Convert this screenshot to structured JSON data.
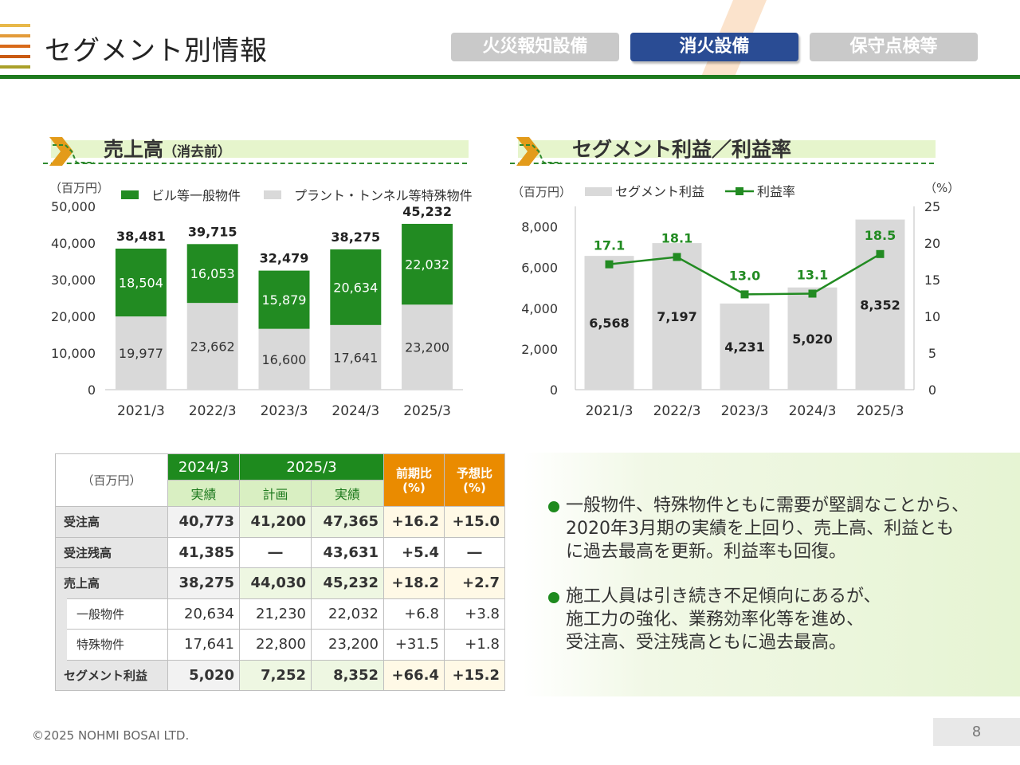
{
  "header": {
    "title": "セグメント別情報",
    "tabs": [
      {
        "label": "火災報知設備",
        "active": false
      },
      {
        "label": "消火設備",
        "active": true
      },
      {
        "label": "保守点検等",
        "active": false
      }
    ]
  },
  "sales_section": {
    "title": "売上高",
    "subtitle": "（消去前）"
  },
  "profit_section": {
    "title": "セグメント利益／利益率"
  },
  "chart_data": [
    {
      "type": "bar",
      "stacked": true,
      "unit_label": "（百万円）",
      "categories": [
        "2021/3",
        "2022/3",
        "2023/3",
        "2024/3",
        "2025/3"
      ],
      "series": [
        {
          "name": "プラント・トンネル等特殊物件",
          "values": [
            19977,
            23662,
            16600,
            17641,
            23200
          ],
          "color": "#d9d9d9"
        },
        {
          "name": "ビル等一般物件",
          "values": [
            18504,
            16053,
            15879,
            20634,
            22032
          ],
          "color": "#228b22"
        }
      ],
      "totals": [
        38481,
        39715,
        32479,
        38275,
        45232
      ],
      "ylim": [
        0,
        50000
      ],
      "yticks": [
        0,
        10000,
        20000,
        30000,
        40000,
        50000
      ],
      "legend_position": "top"
    },
    {
      "type": "bar",
      "secondary_line": true,
      "unit_label_left": "（百万円）",
      "unit_label_right": "（%）",
      "categories": [
        "2021/3",
        "2022/3",
        "2023/3",
        "2024/3",
        "2025/3"
      ],
      "series": [
        {
          "name": "セグメント利益",
          "type": "bar",
          "axis": "left",
          "values": [
            6568,
            7197,
            4231,
            5020,
            8352
          ],
          "color": "#d9d9d9"
        },
        {
          "name": "利益率",
          "type": "line",
          "axis": "right",
          "values": [
            17.1,
            18.1,
            13.0,
            13.1,
            18.5
          ],
          "color": "#228b22"
        }
      ],
      "ylim": [
        0,
        9000
      ],
      "yticks": [
        0,
        2000,
        4000,
        6000,
        8000
      ],
      "y2lim": [
        0,
        25
      ],
      "y2ticks": [
        0,
        5,
        10,
        15,
        20,
        25
      ],
      "legend_position": "top"
    }
  ],
  "table": {
    "unit": "（百万円）",
    "col_2024": "2024/3",
    "col_2025": "2025/3",
    "sub_actual_2024": "実績",
    "sub_plan": "計画",
    "sub_actual_2025": "実績",
    "yoy_label": "前期比",
    "plan_ratio_label": "予想比",
    "pct": "(%)",
    "rows": [
      {
        "label": "受注高",
        "a": "40,773",
        "b": "41,200",
        "c": "47,365",
        "d": "+16.2",
        "e": "+15.0"
      },
      {
        "label": "受注残高",
        "a": "41,385",
        "b": "―",
        "c": "43,631",
        "d": "+5.4",
        "e": "―"
      },
      {
        "label": "売上高",
        "a": "38,275",
        "b": "44,030",
        "c": "45,232",
        "d": "+18.2",
        "e": "+2.7"
      },
      {
        "label": "一般物件",
        "a": "20,634",
        "b": "21,230",
        "c": "22,032",
        "d": "+6.8",
        "e": "+3.8"
      },
      {
        "label": "特殊物件",
        "a": "17,641",
        "b": "22,800",
        "c": "23,200",
        "d": "+31.5",
        "e": "+1.8"
      },
      {
        "label": "セグメント利益",
        "a": "5,020",
        "b": "7,252",
        "c": "8,352",
        "d": "+66.4",
        "e": "+15.2"
      }
    ]
  },
  "comments": [
    {
      "line1": "一般物件、特殊物件ともに需要が堅調なことから、",
      "line2": "2020年3月期の実績を上回り、売上高、利益とも",
      "line3": "に過去最高を更新。利益率も回復。"
    },
    {
      "line1": "施工人員は引き続き不足傾向にあるが、",
      "line2": "施工力の強化、業務効率化等を進め、",
      "line3": "受注高、受注残高ともに過去最高。"
    }
  ],
  "footer": {
    "copyright": "©2025 NOHMI BOSAI LTD.",
    "page": "8"
  },
  "colors": {
    "accent_green": "#1e8a1e",
    "tab_active": "#2a4c94",
    "tab_inactive": "#c9c9c9",
    "orange": "#ea8b00"
  }
}
